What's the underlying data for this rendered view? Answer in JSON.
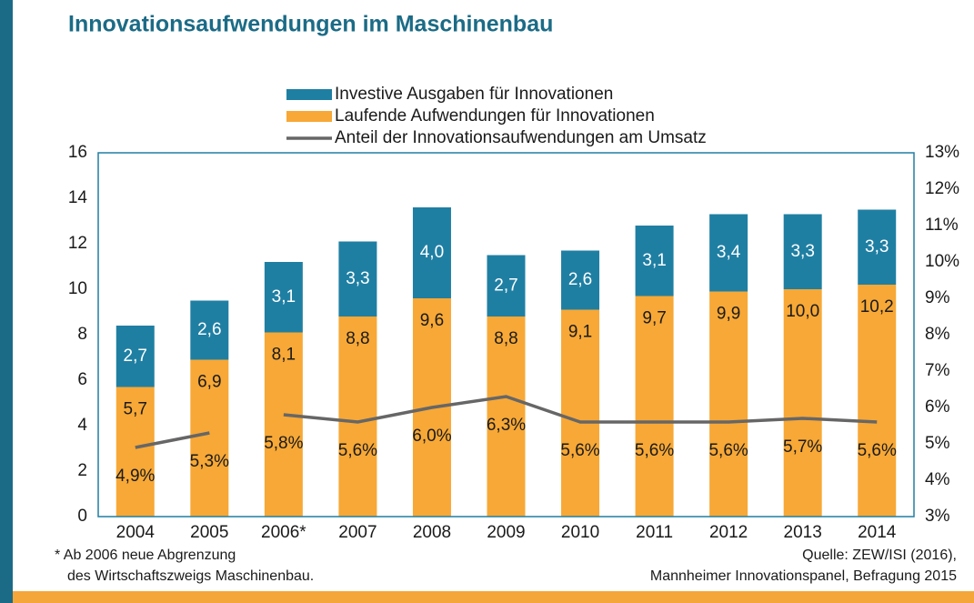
{
  "chart_data": {
    "type": "bar",
    "title": "Innovationsaufwendungen im Maschinenbau",
    "categories": [
      "2004",
      "2005",
      "2006*",
      "2007",
      "2008",
      "2009",
      "2010",
      "2011",
      "2012",
      "2013",
      "2014"
    ],
    "series": [
      {
        "name": "Investive Ausgaben für Innovationen",
        "color": "#1f7fa3",
        "type": "bar",
        "values": [
          2.7,
          2.6,
          3.1,
          3.3,
          4.0,
          2.7,
          2.6,
          3.1,
          3.4,
          3.3,
          3.3
        ],
        "value_labels": [
          "2,7",
          "2,6",
          "3,1",
          "3,3",
          "4,0",
          "2,7",
          "2,6",
          "3,1",
          "3,4",
          "3,3",
          "3,3"
        ]
      },
      {
        "name": "Laufende Aufwendungen für Innovationen",
        "color": "#f7a836",
        "type": "bar",
        "values": [
          5.7,
          6.9,
          8.1,
          8.8,
          9.6,
          8.8,
          9.1,
          9.7,
          9.9,
          10.0,
          10.2
        ],
        "value_labels": [
          "5,7",
          "6,9",
          "8,1",
          "8,8",
          "9,6",
          "8,8",
          "9,1",
          "9,7",
          "9,9",
          "10,0",
          "10,2"
        ]
      },
      {
        "name": "Anteil der Innovationsaufwendungen am Umsatz",
        "color": "#666666",
        "type": "line",
        "axis": "y2",
        "values": [
          4.9,
          5.3,
          5.8,
          5.6,
          6.0,
          6.3,
          5.6,
          5.6,
          5.6,
          5.7,
          5.6
        ],
        "value_labels": [
          "4,9%",
          "5,3%",
          "5,8%",
          "5,6%",
          "6,0%",
          "6,3%",
          "5,6%",
          "5,6%",
          "5,6%",
          "5,7%",
          "5,6%"
        ]
      }
    ],
    "stacked": true,
    "line_break_before": "2006*",
    "ylim": [
      0,
      16
    ],
    "yticks": [
      0,
      2,
      4,
      6,
      8,
      10,
      12,
      14,
      16
    ],
    "y2lim": [
      3,
      13
    ],
    "y2ticks": [
      {
        "value": 3,
        "label": "3%"
      },
      {
        "value": 4,
        "label": "4%"
      },
      {
        "value": 5,
        "label": "5%"
      },
      {
        "value": 6,
        "label": "6%"
      },
      {
        "value": 7,
        "label": "7%"
      },
      {
        "value": 8,
        "label": "8%"
      },
      {
        "value": 9,
        "label": "9%"
      },
      {
        "value": 10,
        "label": "10%"
      },
      {
        "value": 11,
        "label": "11%"
      },
      {
        "value": 12,
        "label": "12%"
      },
      {
        "value": 13,
        "label": "13%"
      }
    ],
    "grid": false,
    "legend": "top",
    "footnote": [
      "* Ab 2006 neue Abgrenzung",
      "des Wirtschaftszweigs Maschinenbau."
    ],
    "source": [
      "Quelle: ZEW/ISI (2016),",
      "Mannheimer Innovationspanel, Befragung 2015"
    ]
  }
}
